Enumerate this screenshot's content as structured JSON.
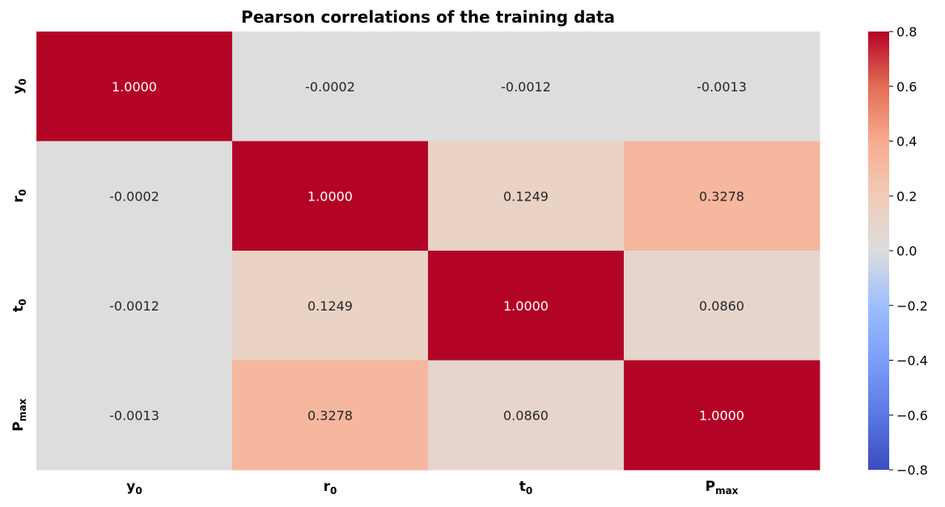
{
  "chart_data": {
    "type": "heatmap",
    "title": "Pearson correlations of the training data",
    "variables": [
      {
        "base": "y",
        "sub": "0"
      },
      {
        "base": "r",
        "sub": "0"
      },
      {
        "base": "t",
        "sub": "0"
      },
      {
        "base": "P",
        "sub": "max"
      }
    ],
    "matrix": [
      [
        1.0,
        -0.0002,
        -0.0012,
        -0.0013
      ],
      [
        -0.0002,
        1.0,
        0.1249,
        0.3278
      ],
      [
        -0.0012,
        0.1249,
        1.0,
        0.086
      ],
      [
        -0.0013,
        0.3278,
        0.086,
        1.0
      ]
    ],
    "cell_labels": [
      [
        "1.0000",
        "-0.0002",
        "-0.0012",
        "-0.0013"
      ],
      [
        "-0.0002",
        "1.0000",
        "0.1249",
        "0.3278"
      ],
      [
        "-0.0012",
        "0.1249",
        "1.0000",
        "0.0860"
      ],
      [
        "-0.0013",
        "0.3278",
        "0.0860",
        "1.0000"
      ]
    ],
    "colormap": "coolwarm",
    "vmin": -0.8,
    "vmax": 0.8,
    "colorbar_ticks": [
      0.8,
      0.6,
      0.4,
      0.2,
      0.0,
      -0.2,
      -0.4,
      -0.6,
      -0.8
    ],
    "colorbar_tick_labels": [
      "0.8",
      "0.6",
      "0.4",
      "0.2",
      "0.0",
      "−0.2",
      "−0.4",
      "−0.6",
      "−0.8"
    ],
    "colors": {
      "low": "#3b4cc0",
      "mid": "#dddddd",
      "high": "#b40426",
      "text_dark": "#262626",
      "text_light": "#ffffff"
    }
  }
}
